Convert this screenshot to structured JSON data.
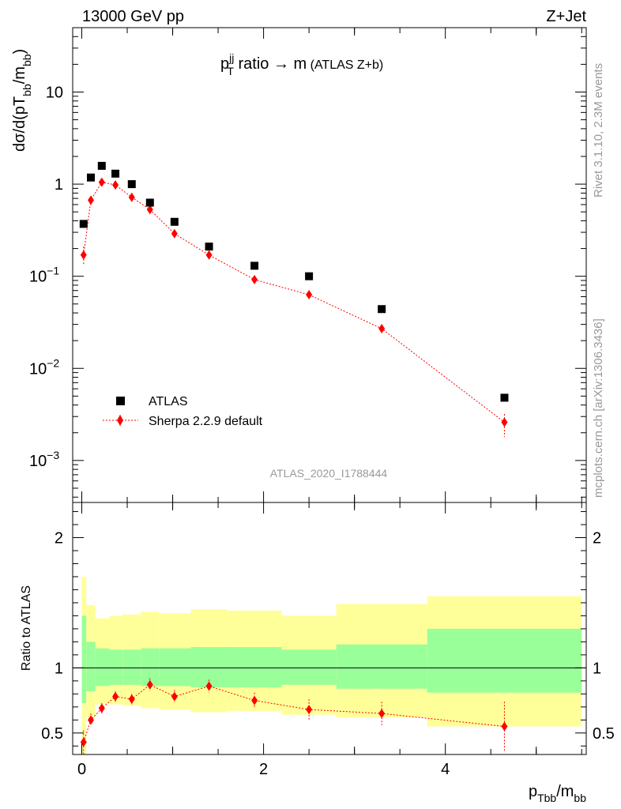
{
  "header": {
    "energy_label": "13000 GeV pp",
    "process_label": "Z+Jet"
  },
  "side_labels": {
    "rivet": "Rivet 3.1.10,  2.3M events",
    "mcplots": "mcplots.cern.ch [arXiv:1306.3436]"
  },
  "chart_data": [
    {
      "type": "scatter",
      "title": {
        "main": "p",
        "sup": "jj",
        "sub": "T",
        "rest": " ratio → m",
        "small": " (ATLAS Z+b)"
      },
      "ylabel": {
        "pre": "dσ/d(pT",
        "sub1": "bb",
        "mid": "/m",
        "sub2": "bb",
        "post": ")"
      },
      "analysis_label": "ATLAS_2020_I1788444",
      "y_scale": "log",
      "xlim": [
        -0.1,
        5.55
      ],
      "ylim": [
        0.00035,
        50
      ],
      "y_ticks": [
        {
          "v": 0.001,
          "base": "10",
          "exp": "−3"
        },
        {
          "v": 0.01,
          "base": "10",
          "exp": "−2"
        },
        {
          "v": 0.1,
          "base": "10",
          "exp": "−1"
        },
        {
          "v": 1,
          "base": "1",
          "exp": ""
        },
        {
          "v": 10,
          "base": "10",
          "exp": ""
        }
      ],
      "legend_position": "bottom-left",
      "series": [
        {
          "name": "ATLAS",
          "color": "#000000",
          "marker": "square",
          "x": [
            0.02,
            0.1,
            0.22,
            0.37,
            0.55,
            0.75,
            1.02,
            1.4,
            1.9,
            2.5,
            3.3,
            4.65
          ],
          "y": [
            0.37,
            1.18,
            1.58,
            1.3,
            1.0,
            0.63,
            0.39,
            0.21,
            0.13,
            0.1,
            0.044,
            0.0048
          ]
        },
        {
          "name": "Sherpa 2.2.9 default",
          "color": "#ff0000",
          "marker": "diamond",
          "line": "dotted",
          "x": [
            0.02,
            0.1,
            0.22,
            0.37,
            0.55,
            0.75,
            1.02,
            1.4,
            1.9,
            2.5,
            3.3,
            4.65
          ],
          "y": [
            0.17,
            0.67,
            1.05,
            0.98,
            0.72,
            0.53,
            0.29,
            0.17,
            0.092,
            0.063,
            0.027,
            0.0026
          ],
          "y_err_low": [
            0.04,
            0.07,
            0.07,
            0.05,
            0.04,
            0.03,
            0.02,
            0.014,
            0.008,
            0.006,
            0.003,
            0.0008
          ],
          "y_err_high": [
            0.04,
            0.07,
            0.07,
            0.05,
            0.04,
            0.03,
            0.02,
            0.014,
            0.008,
            0.006,
            0.003,
            0.0006
          ]
        }
      ]
    },
    {
      "type": "scatter",
      "ylabel": "Ratio to ATLAS",
      "xlabel": {
        "main": "p",
        "sub1": "Tbb",
        "mid": "/m",
        "sub2": "bb"
      },
      "xlim": [
        -0.1,
        5.55
      ],
      "ylim": [
        0.335,
        2.27
      ],
      "x_ticks": [
        0,
        2,
        4
      ],
      "y_ticks": [
        0.5,
        1,
        2
      ],
      "reference_line": 1,
      "bands": [
        {
          "x0": 0.0,
          "x1": 0.05,
          "green": [
            0.73,
            1.4
          ],
          "yellow": [
            0.33,
            1.7
          ]
        },
        {
          "x0": 0.05,
          "x1": 0.15,
          "green": [
            0.82,
            1.2
          ],
          "yellow": [
            0.62,
            1.48
          ]
        },
        {
          "x0": 0.15,
          "x1": 0.3,
          "green": [
            0.86,
            1.15
          ],
          "yellow": [
            0.72,
            1.38
          ]
        },
        {
          "x0": 0.3,
          "x1": 0.45,
          "green": [
            0.87,
            1.14
          ],
          "yellow": [
            0.72,
            1.4
          ]
        },
        {
          "x0": 0.45,
          "x1": 0.65,
          "green": [
            0.87,
            1.14
          ],
          "yellow": [
            0.71,
            1.41
          ]
        },
        {
          "x0": 0.65,
          "x1": 0.85,
          "green": [
            0.86,
            1.15
          ],
          "yellow": [
            0.69,
            1.43
          ]
        },
        {
          "x0": 0.85,
          "x1": 1.2,
          "green": [
            0.86,
            1.15
          ],
          "yellow": [
            0.68,
            1.42
          ]
        },
        {
          "x0": 1.2,
          "x1": 1.6,
          "green": [
            0.85,
            1.16
          ],
          "yellow": [
            0.66,
            1.45
          ]
        },
        {
          "x0": 1.6,
          "x1": 2.2,
          "green": [
            0.85,
            1.16
          ],
          "yellow": [
            0.67,
            1.44
          ]
        },
        {
          "x0": 2.2,
          "x1": 2.8,
          "green": [
            0.87,
            1.14
          ],
          "yellow": [
            0.64,
            1.4
          ]
        },
        {
          "x0": 2.8,
          "x1": 3.8,
          "green": [
            0.84,
            1.18
          ],
          "yellow": [
            0.62,
            1.49
          ]
        },
        {
          "x0": 3.8,
          "x1": 5.5,
          "green": [
            0.81,
            1.3
          ],
          "yellow": [
            0.55,
            1.55
          ]
        }
      ],
      "series": [
        {
          "name": "Sherpa 2.2.9 default",
          "color": "#ff0000",
          "x": [
            0.02,
            0.1,
            0.22,
            0.37,
            0.55,
            0.75,
            1.02,
            1.4,
            1.9,
            2.5,
            3.3,
            4.65
          ],
          "y": [
            0.43,
            0.6,
            0.69,
            0.78,
            0.76,
            0.87,
            0.78,
            0.86,
            0.75,
            0.68,
            0.65,
            0.55
          ],
          "y_err": [
            0.09,
            0.05,
            0.04,
            0.04,
            0.04,
            0.05,
            0.05,
            0.05,
            0.06,
            0.08,
            0.09,
            0.19
          ]
        }
      ]
    }
  ],
  "colors": {
    "band_inner": "#99ff99",
    "band_outer": "#ffff99",
    "atlas": "#000000",
    "sherpa": "#ff0000",
    "side_text": "#999999"
  }
}
